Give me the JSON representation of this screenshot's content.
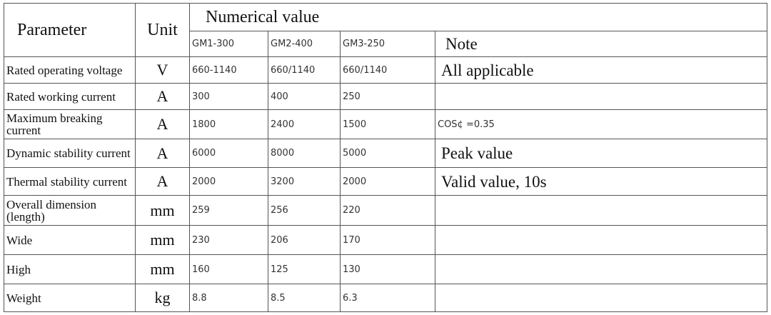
{
  "header": {
    "parameter": "Parameter",
    "unit": "Unit",
    "numerical_value": "Numerical value",
    "models": [
      "GM1-300",
      "GM2-400",
      "GM3-250"
    ],
    "note": "Note"
  },
  "rows": [
    {
      "parameter": "Rated operating voltage",
      "unit": "V",
      "values": [
        "660-1140",
        "660/1140",
        "660/1140"
      ],
      "note": "All applicable"
    },
    {
      "parameter": "Rated working current",
      "unit": "A",
      "values": [
        "300",
        "400",
        "250"
      ]
    },
    {
      "parameter": "Maximum breaking current",
      "unit": "A",
      "values": [
        "1800",
        "2400",
        "1500"
      ],
      "note": "COS¢ =0.35"
    },
    {
      "parameter": "Dynamic stability current",
      "unit": "A",
      "values": [
        "6000",
        "8000",
        "5000"
      ],
      "note": "Peak value"
    },
    {
      "parameter": "Thermal stability current",
      "unit": "A",
      "values": [
        "2000",
        "3200",
        "2000"
      ],
      "note": "Valid value, 10s"
    },
    {
      "parameter": "Overall dimension (length)",
      "unit": "mm",
      "values": [
        "259",
        "256",
        "220"
      ]
    },
    {
      "parameter": "Wide",
      "unit": "mm",
      "values": [
        "230",
        "206",
        "170"
      ]
    },
    {
      "parameter": "High",
      "unit": "mm",
      "values": [
        "160",
        "125",
        "130"
      ]
    },
    {
      "parameter": "Weight",
      "unit": "kg",
      "values": [
        "8.8",
        "8.5",
        "6.3"
      ]
    }
  ]
}
